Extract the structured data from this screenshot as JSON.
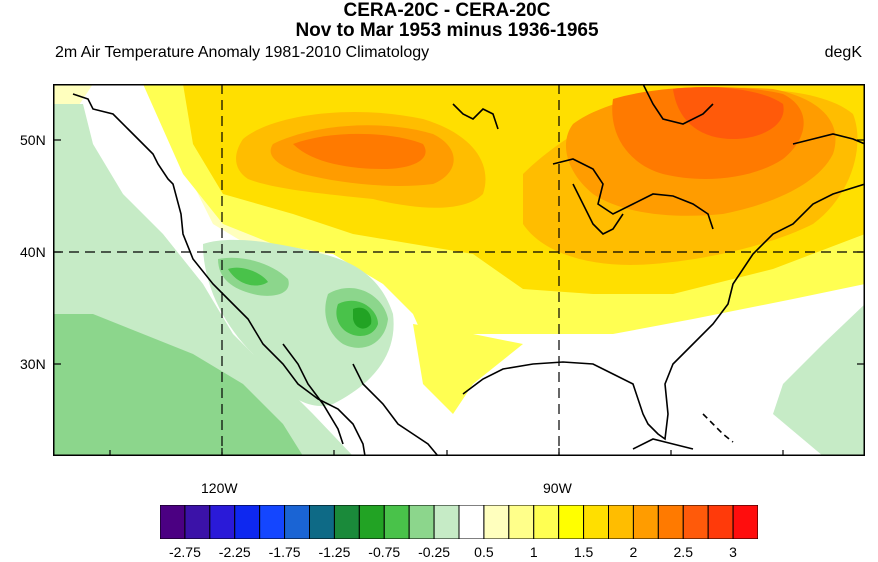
{
  "title": {
    "line1": "CERA-20C - CERA-20C",
    "line2": "Nov to Mar 1953 minus 1936-1965"
  },
  "subtitle": {
    "left": "2m Air Temperature Anomaly  1981-2010 Climatology",
    "right": "degK"
  },
  "axes": {
    "lat_labels": [
      "50N",
      "40N",
      "30N"
    ],
    "lon_labels": [
      "120W",
      "90W"
    ],
    "grid": "dashed lines at 40N and 90W, 120W"
  },
  "colorbar": {
    "colors": [
      "#4b0082",
      "#3b12a8",
      "#2a1ad8",
      "#0e28f0",
      "#1446ff",
      "#1a64d4",
      "#0e6a86",
      "#1a8a3a",
      "#22a324",
      "#49c24a",
      "#8cd68c",
      "#c6ebc6",
      "#ffffff",
      "#ffffbe",
      "#ffff8a",
      "#ffff52",
      "#ffff00",
      "#ffdf00",
      "#ffbd00",
      "#ff9c00",
      "#ff7a00",
      "#ff5a0a",
      "#ff3a0a",
      "#ff0d0d"
    ],
    "labels": [
      "-2.75",
      "-2.25",
      "-1.75",
      "-1.25",
      "-0.75",
      "-0.25",
      "0.5",
      "1",
      "1.5",
      "2",
      "2.5",
      "3"
    ]
  }
}
